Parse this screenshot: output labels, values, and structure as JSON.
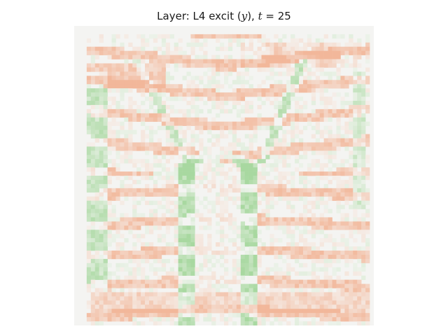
{
  "chart_data": {
    "type": "heatmap",
    "title_prefix": "Layer: L4 excit (",
    "title_var": "y",
    "title_mid": "), ",
    "title_time_var": "t",
    "title_time_eq": " = 25",
    "axes_visible": false,
    "grid": false,
    "grid_size": 72,
    "colors": {
      "background": "#f4f4f2",
      "positive": "#f2b79a",
      "negative": "#a8d8a0"
    },
    "value_scale": "diverging: positive = red/orange, negative = green, near-zero = white",
    "regions_description": "staircase: curved horizontal step edges (orange), central arched doorway (green vertical edges), vertical green left edge, bright top strip"
  }
}
